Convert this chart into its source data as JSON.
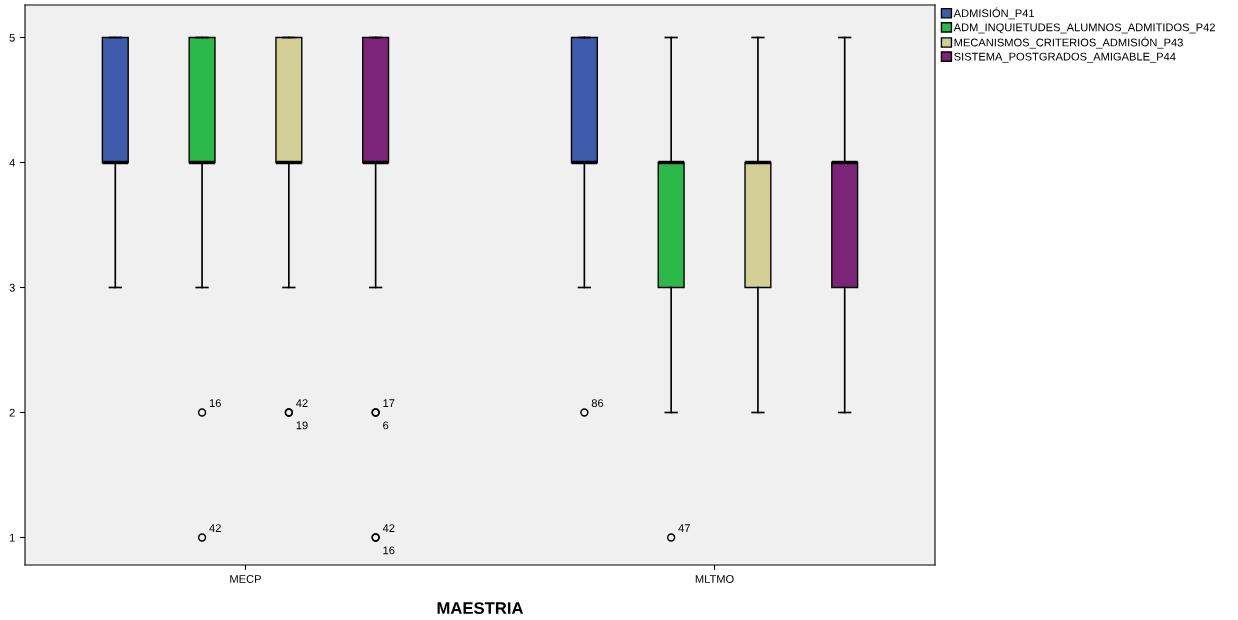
{
  "chart_data": {
    "type": "box",
    "xlabel": "MAESTRIA",
    "categories": [
      "MECP",
      "MLTMO"
    ],
    "ylim": [
      0.78,
      5.26
    ],
    "yticks": [
      1,
      2,
      3,
      4,
      5
    ],
    "grid": false,
    "legend": "top right",
    "series": [
      {
        "name": "ADMISIÓN_P41",
        "color": "#3f5bab",
        "boxes": [
          {
            "low": 3,
            "q1": 4,
            "median": 4,
            "q3": 5,
            "high": 5
          },
          {
            "low": 3,
            "q1": 4,
            "median": 4,
            "q3": 5,
            "high": 5,
            "outliers": [
              2
            ]
          }
        ]
      },
      {
        "name": "ADM_INQUIETUDES_ALUMNOS_ADMITIDOS_P42",
        "color": "#2db84a",
        "boxes": [
          {
            "low": 3,
            "q1": 4,
            "median": 4,
            "q3": 5,
            "high": 5,
            "outliers": [
              2,
              1
            ]
          },
          {
            "low": 2,
            "q1": 3,
            "median": 4,
            "q3": 4,
            "high": 5,
            "outliers": [
              1
            ]
          }
        ]
      },
      {
        "name": "MECANISMOS_CRITERIOS_ADMISIÓN_P43",
        "color": "#d3ce96",
        "boxes": [
          {
            "low": 3,
            "q1": 4,
            "median": 4,
            "q3": 5,
            "high": 5,
            "outliers": [
              2,
              2
            ]
          },
          {
            "low": 2,
            "q1": 3,
            "median": 4,
            "q3": 4,
            "high": 5
          }
        ]
      },
      {
        "name": "SISTEMA_POSTGRADOS_AMIGABLE_P44",
        "color": "#7c2478",
        "boxes": [
          {
            "low": 3,
            "q1": 4,
            "median": 4,
            "q3": 5,
            "high": 5,
            "outliers": [
              2,
              2,
              1,
              1
            ]
          },
          {
            "low": 2,
            "q1": 3,
            "median": 4,
            "q3": 4,
            "high": 5
          }
        ]
      }
    ],
    "annotations": [
      "16",
      "42",
      "42",
      "19",
      "17",
      "6",
      "42",
      "16",
      "86",
      "47"
    ]
  }
}
